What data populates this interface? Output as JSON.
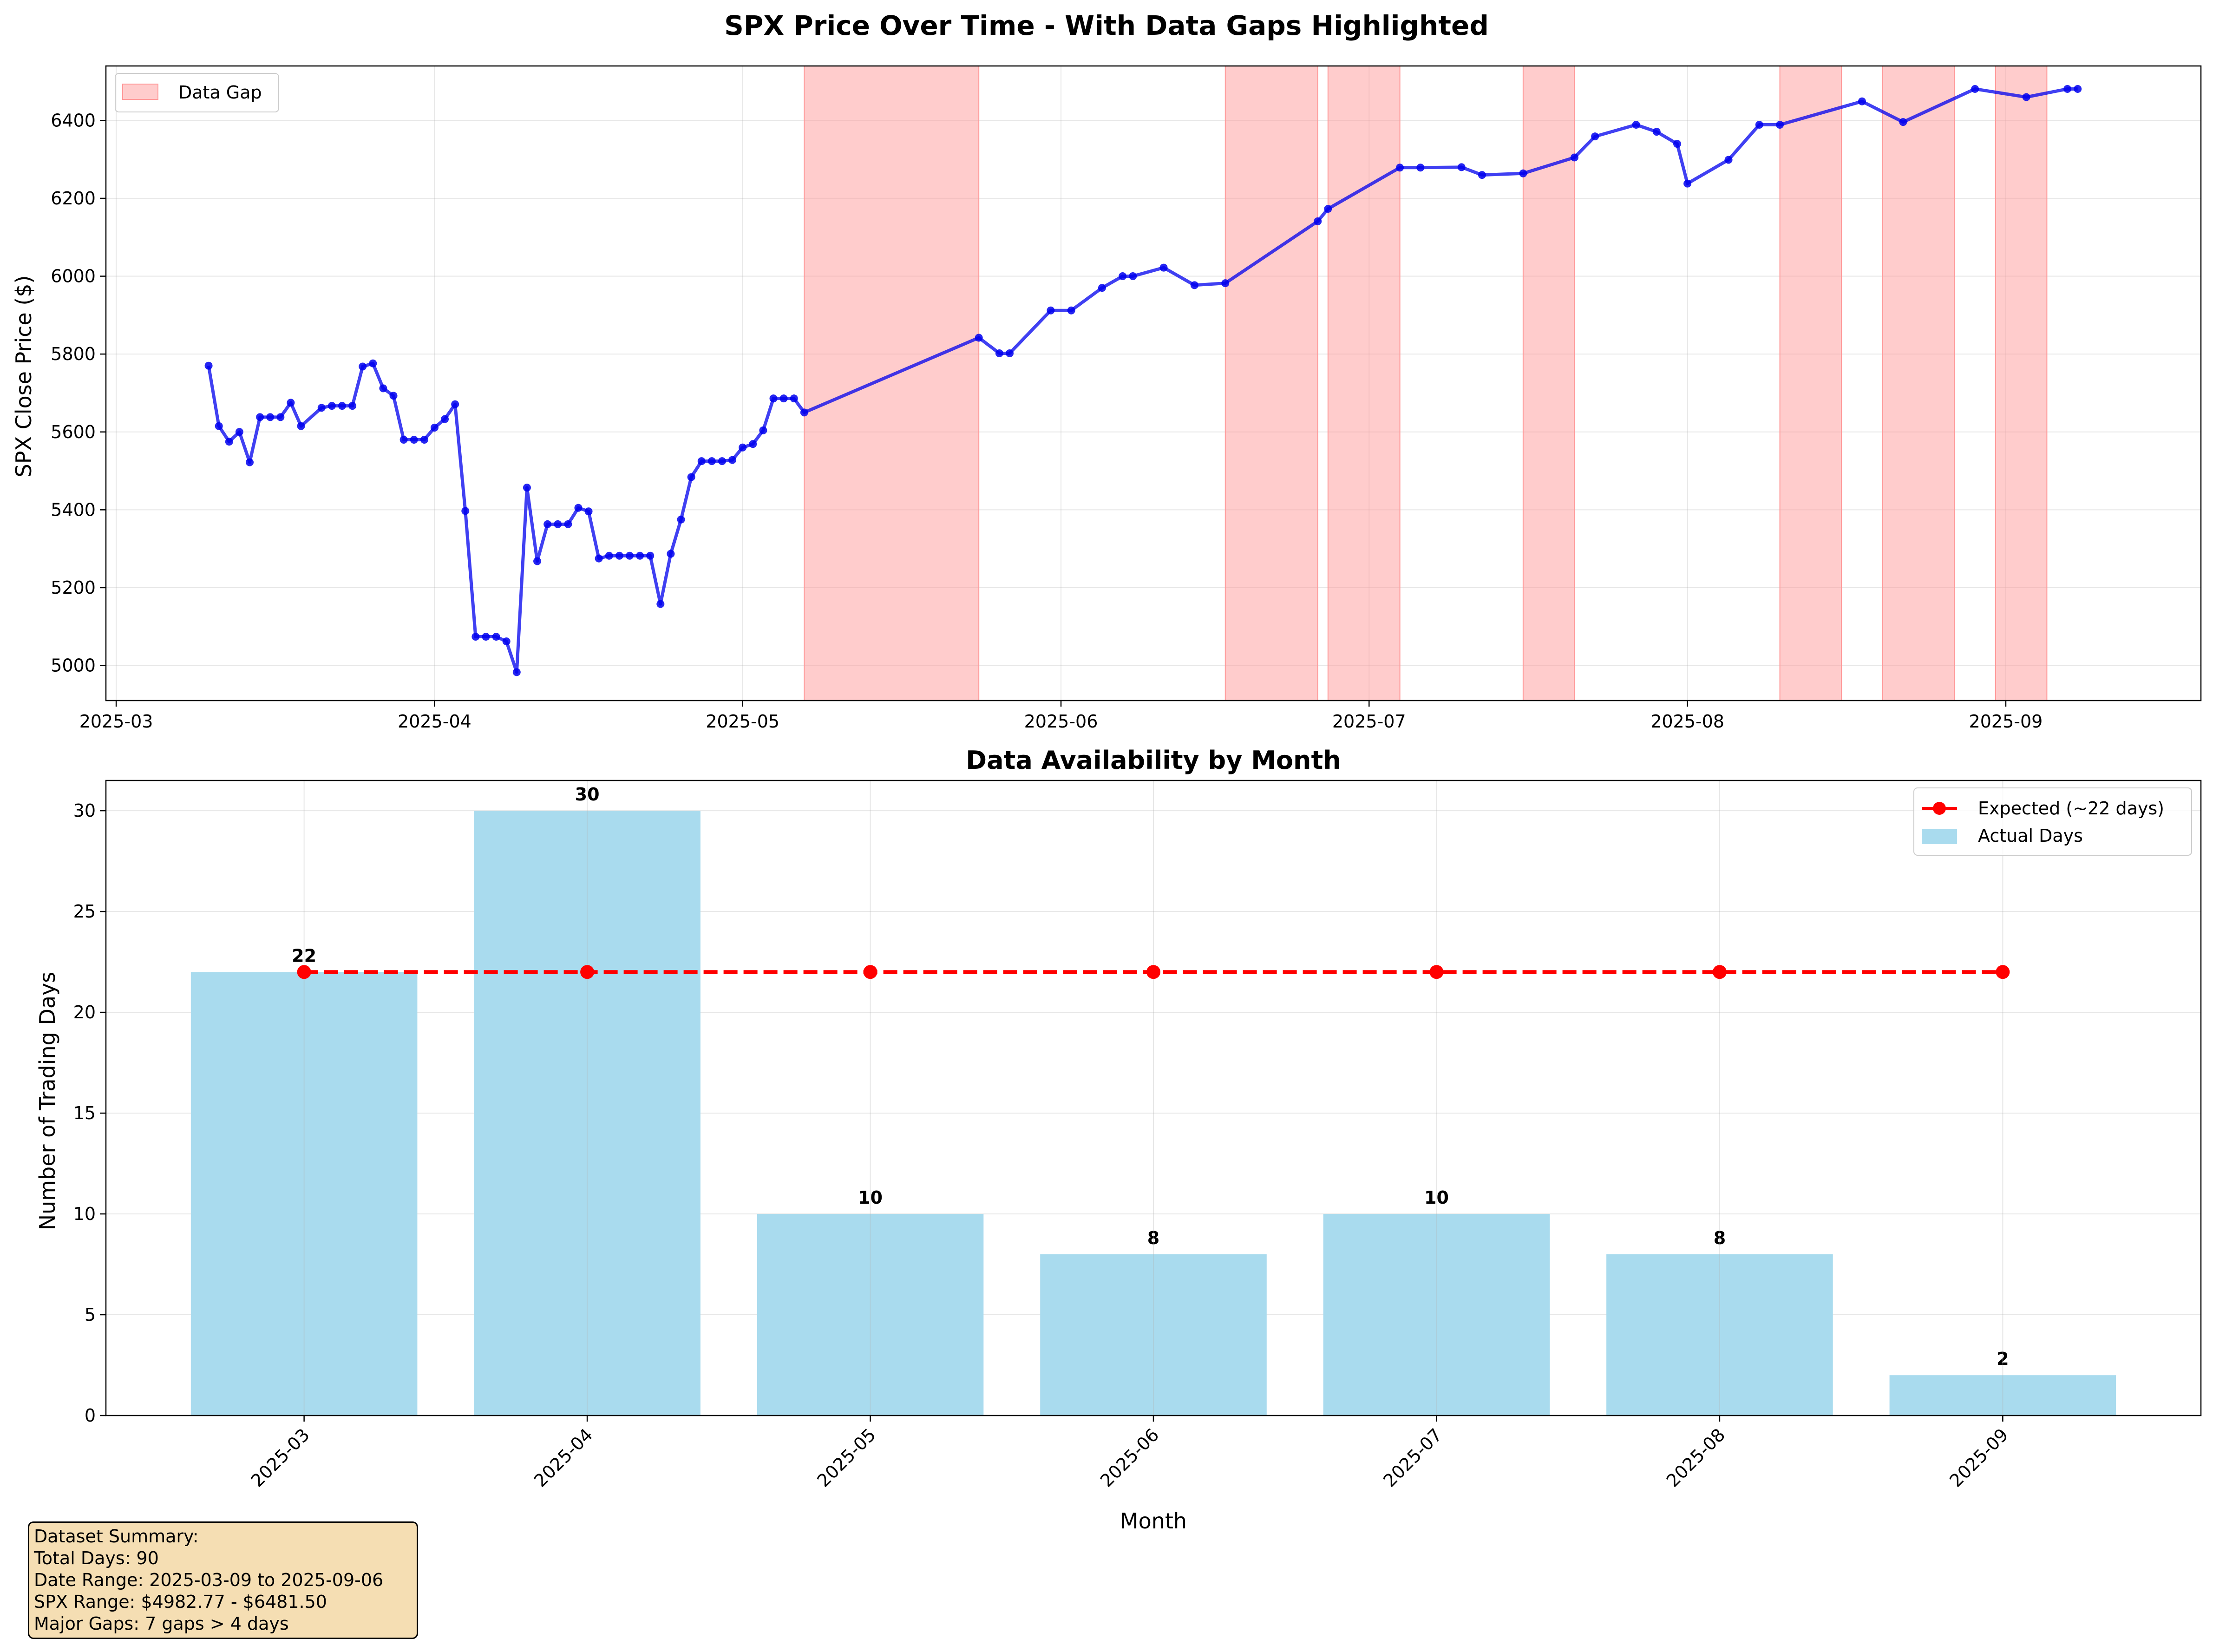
{
  "chart_data": [
    {
      "type": "line",
      "title": "SPX Price Over Time - With Data Gaps Highlighted",
      "xlabel": "",
      "ylabel": "SPX Close Price ($)",
      "x_ticks": [
        "2025-03",
        "2025-04",
        "2025-05",
        "2025-06",
        "2025-07",
        "2025-08",
        "2025-09"
      ],
      "y_ticks": [
        5000,
        5200,
        5400,
        5600,
        5800,
        6000,
        6200,
        6400
      ],
      "xlim": [
        "2025-02-28",
        "2025-09-20"
      ],
      "ylim": [
        4910,
        6540
      ],
      "grid": true,
      "legend": {
        "position": "top-left",
        "entries": [
          "Data Gap"
        ]
      },
      "colors": {
        "line": "#0000ee",
        "gap": "#ff9999"
      },
      "series": [
        {
          "points": [
            [
              "2025-03-10",
              5770
            ],
            [
              "2025-03-11",
              5615
            ],
            [
              "2025-03-12",
              5575
            ],
            [
              "2025-03-13",
              5600
            ],
            [
              "2025-03-14",
              5522
            ],
            [
              "2025-03-15",
              5638
            ],
            [
              "2025-03-16",
              5638
            ],
            [
              "2025-03-17",
              5638
            ],
            [
              "2025-03-18",
              5675
            ],
            [
              "2025-03-19",
              5615
            ],
            [
              "2025-03-21",
              5662
            ],
            [
              "2025-03-22",
              5667
            ],
            [
              "2025-03-23",
              5667
            ],
            [
              "2025-03-24",
              5667
            ],
            [
              "2025-03-25",
              5768
            ],
            [
              "2025-03-26",
              5776
            ],
            [
              "2025-03-27",
              5712
            ],
            [
              "2025-03-28",
              5693
            ],
            [
              "2025-03-29",
              5580
            ],
            [
              "2025-03-30",
              5580
            ],
            [
              "2025-03-31",
              5580
            ],
            [
              "2025-04-01",
              5611
            ],
            [
              "2025-04-02",
              5633
            ],
            [
              "2025-04-03",
              5671
            ],
            [
              "2025-04-04",
              5397
            ],
            [
              "2025-04-05",
              5074
            ],
            [
              "2025-04-06",
              5074
            ],
            [
              "2025-04-07",
              5074
            ],
            [
              "2025-04-08",
              5062
            ],
            [
              "2025-04-09",
              4983
            ],
            [
              "2025-04-10",
              5457
            ],
            [
              "2025-04-11",
              5268
            ],
            [
              "2025-04-12",
              5363
            ],
            [
              "2025-04-13",
              5363
            ],
            [
              "2025-04-14",
              5363
            ],
            [
              "2025-04-15",
              5405
            ],
            [
              "2025-04-16",
              5396
            ],
            [
              "2025-04-17",
              5275
            ],
            [
              "2025-04-18",
              5282
            ],
            [
              "2025-04-19",
              5282
            ],
            [
              "2025-04-20",
              5282
            ],
            [
              "2025-04-21",
              5282
            ],
            [
              "2025-04-22",
              5282
            ],
            [
              "2025-04-23",
              5158
            ],
            [
              "2025-04-24",
              5287
            ],
            [
              "2025-04-25",
              5375
            ],
            [
              "2025-04-26",
              5484
            ],
            [
              "2025-04-27",
              5525
            ],
            [
              "2025-04-28",
              5525
            ],
            [
              "2025-04-29",
              5525
            ],
            [
              "2025-04-30",
              5528
            ],
            [
              "2025-05-01",
              5560
            ],
            [
              "2025-05-02",
              5569
            ],
            [
              "2025-05-03",
              5604
            ],
            [
              "2025-05-04",
              5686
            ],
            [
              "2025-05-05",
              5686
            ],
            [
              "2025-05-06",
              5686
            ],
            [
              "2025-05-07",
              5650
            ],
            [
              "2025-05-24",
              5842
            ],
            [
              "2025-05-26",
              5802
            ],
            [
              "2025-05-27",
              5802
            ],
            [
              "2025-05-31",
              5912
            ],
            [
              "2025-06-02",
              5912
            ],
            [
              "2025-06-05",
              5970
            ],
            [
              "2025-06-07",
              6000
            ],
            [
              "2025-06-08",
              6000
            ],
            [
              "2025-06-11",
              6022
            ],
            [
              "2025-06-14",
              5977
            ],
            [
              "2025-06-17",
              5982
            ],
            [
              "2025-06-26",
              6141
            ],
            [
              "2025-06-27",
              6173
            ],
            [
              "2025-07-04",
              6279
            ],
            [
              "2025-07-06",
              6279
            ],
            [
              "2025-07-10",
              6280
            ],
            [
              "2025-07-12",
              6260
            ],
            [
              "2025-07-16",
              6264
            ],
            [
              "2025-07-21",
              6305
            ],
            [
              "2025-07-23",
              6359
            ],
            [
              "2025-07-27",
              6389
            ],
            [
              "2025-07-29",
              6371
            ],
            [
              "2025-07-31",
              6340
            ],
            [
              "2025-08-01",
              6238
            ],
            [
              "2025-08-05",
              6299
            ],
            [
              "2025-08-08",
              6389
            ],
            [
              "2025-08-10",
              6389
            ],
            [
              "2025-08-18",
              6449
            ],
            [
              "2025-08-22",
              6396
            ],
            [
              "2025-08-29",
              6481
            ],
            [
              "2025-09-03",
              6460
            ],
            [
              "2025-09-07",
              6481
            ],
            [
              "2025-09-08",
              6481
            ]
          ]
        }
      ],
      "gaps": [
        [
          "2025-05-07",
          "2025-05-24"
        ],
        [
          "2025-06-17",
          "2025-06-26"
        ],
        [
          "2025-06-27",
          "2025-07-04"
        ],
        [
          "2025-07-16",
          "2025-07-21"
        ],
        [
          "2025-08-10",
          "2025-08-16"
        ],
        [
          "2025-08-20",
          "2025-08-27"
        ],
        [
          "2025-08-31",
          "2025-09-05"
        ]
      ]
    },
    {
      "type": "bar",
      "title": "Data Availability by Month",
      "xlabel": "Month",
      "ylabel": "Number of Trading Days",
      "categories": [
        "2025-03",
        "2025-04",
        "2025-05",
        "2025-06",
        "2025-07",
        "2025-08",
        "2025-09"
      ],
      "values": [
        22,
        30,
        10,
        8,
        10,
        8,
        2
      ],
      "value_labels": [
        "22",
        "30",
        "10",
        "8",
        "10",
        "8",
        "2"
      ],
      "y_ticks": [
        0,
        5,
        10,
        15,
        20,
        25,
        30
      ],
      "ylim": [
        0,
        31.5
      ],
      "grid": true,
      "legend": {
        "position": "top-right",
        "entries": [
          "Expected (~22 days)",
          "Actual Days"
        ]
      },
      "colors": {
        "bar": "#a9dbee",
        "expected": "#ff0000"
      },
      "series": [
        {
          "name": "Actual Days",
          "values": [
            22,
            30,
            10,
            8,
            10,
            8,
            2
          ]
        },
        {
          "name": "Expected (~22 days)",
          "values": [
            22,
            22,
            22,
            22,
            22,
            22,
            22
          ]
        }
      ]
    }
  ],
  "summary": {
    "lines": [
      "Dataset Summary:",
      "Total Days: 90",
      "Date Range: 2025-03-09 to 2025-09-06",
      "SPX Range: $4982.77 - $6481.50",
      "Major Gaps: 7 gaps > 4 days"
    ]
  }
}
